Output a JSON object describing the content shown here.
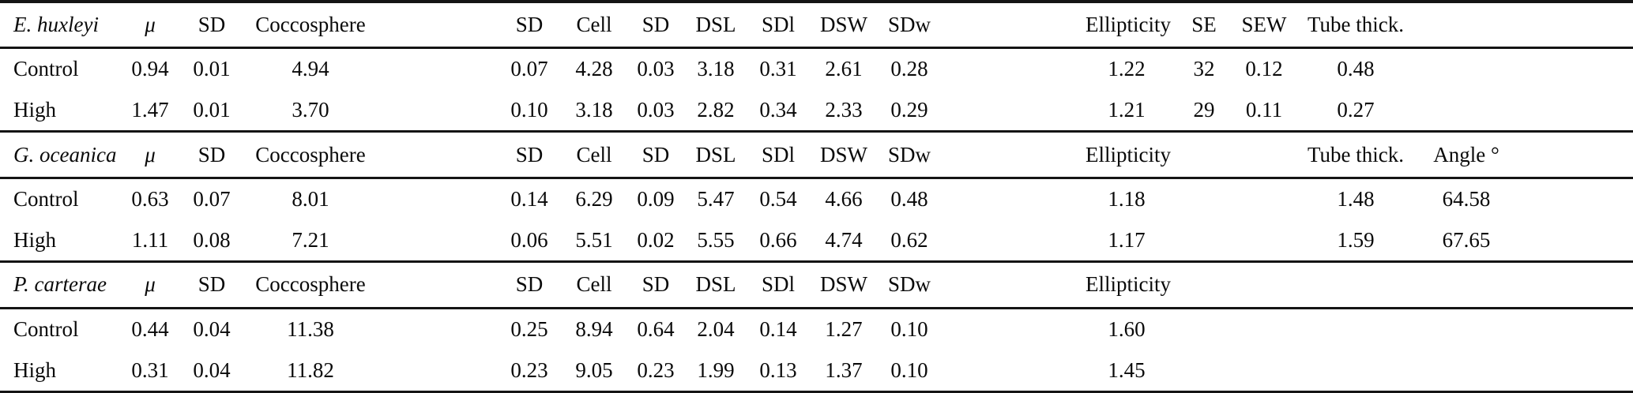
{
  "colors": {
    "background": "#ffffff",
    "text": "#0a0a0a",
    "rule": "#141414"
  },
  "table": {
    "sections": [
      {
        "species": "E. huxleyi",
        "headers": [
          "μ",
          "SD",
          "Coccosphere",
          "SD",
          "Cell",
          "SD",
          "DSL",
          "SDl",
          "DSW",
          "SDw",
          "Ellipticity",
          "SE",
          "SEW",
          "Tube thick.",
          ""
        ],
        "rows": [
          {
            "label": "Control",
            "values": [
              "0.94",
              "0.01",
              "4.94",
              "0.07",
              "4.28",
              "0.03",
              "3.18",
              "0.31",
              "2.61",
              "0.28",
              "1.22",
              "32",
              "0.12",
              "0.48",
              ""
            ]
          },
          {
            "label": "High",
            "values": [
              "1.47",
              "0.01",
              "3.70",
              "0.10",
              "3.18",
              "0.03",
              "2.82",
              "0.34",
              "2.33",
              "0.29",
              "1.21",
              "29",
              "0.11",
              "0.27",
              ""
            ]
          }
        ]
      },
      {
        "species": "G. oceanica",
        "headers": [
          "μ",
          "SD",
          "Coccosphere",
          "SD",
          "Cell",
          "SD",
          "DSL",
          "SDl",
          "DSW",
          "SDw",
          "Ellipticity",
          "",
          "",
          "Tube thick.",
          "Angle °"
        ],
        "rows": [
          {
            "label": "Control",
            "values": [
              "0.63",
              "0.07",
              "8.01",
              "0.14",
              "6.29",
              "0.09",
              "5.47",
              "0.54",
              "4.66",
              "0.48",
              "1.18",
              "",
              "",
              "1.48",
              "64.58"
            ]
          },
          {
            "label": "High",
            "values": [
              "1.11",
              "0.08",
              "7.21",
              "0.06",
              "5.51",
              "0.02",
              "5.55",
              "0.66",
              "4.74",
              "0.62",
              "1.17",
              "",
              "",
              "1.59",
              "67.65"
            ]
          }
        ]
      },
      {
        "species": "P. carterae",
        "headers": [
          "μ",
          "SD",
          "Coccosphere",
          "SD",
          "Cell",
          "SD",
          "DSL",
          "SDl",
          "DSW",
          "SDw",
          "Ellipticity",
          "",
          "",
          "",
          ""
        ],
        "rows": [
          {
            "label": "Control",
            "values": [
              "0.44",
              "0.04",
              "11.38",
              "0.25",
              "8.94",
              "0.64",
              "2.04",
              "0.14",
              "1.27",
              "0.10",
              "1.60",
              "",
              "",
              "",
              ""
            ]
          },
          {
            "label": "High",
            "values": [
              "0.31",
              "0.04",
              "11.82",
              "0.23",
              "9.05",
              "0.23",
              "1.99",
              "0.13",
              "1.37",
              "0.10",
              "1.45",
              "",
              "",
              "",
              ""
            ]
          }
        ]
      }
    ]
  }
}
